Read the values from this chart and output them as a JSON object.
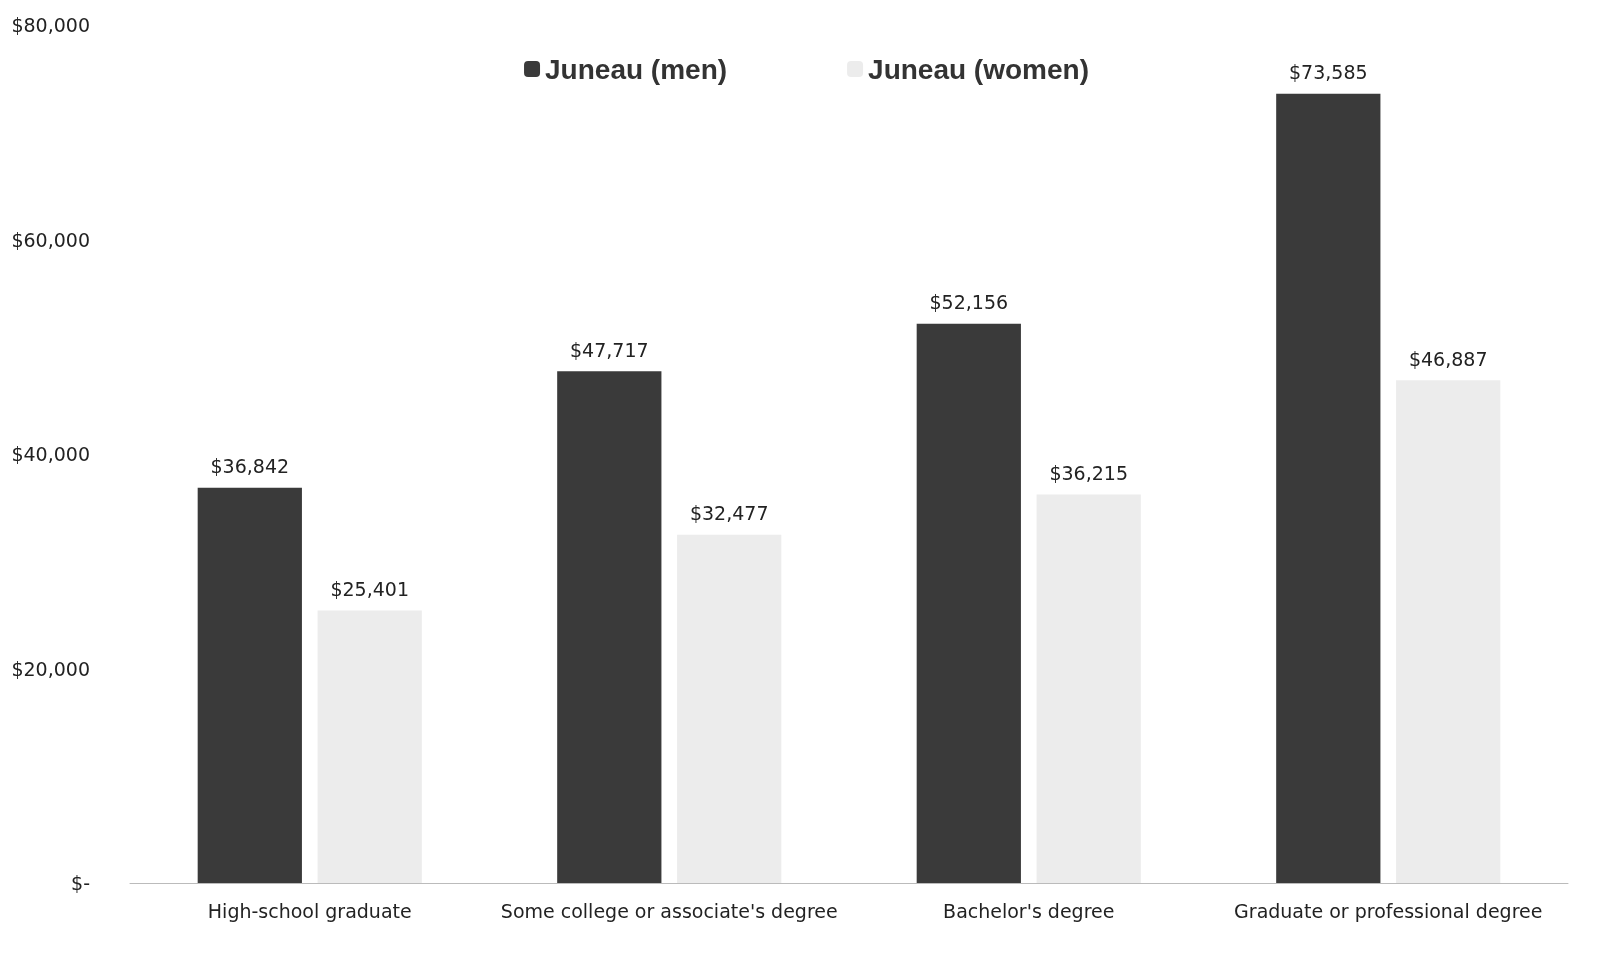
{
  "chart_data": {
    "type": "bar",
    "categories": [
      "High-school graduate",
      "Some college or associate's degree",
      "Bachelor's degree",
      "Graduate or professional degree"
    ],
    "series": [
      {
        "name": "Juneau (men)",
        "color": "#3a3a3a",
        "values": [
          36842,
          47717,
          52156,
          73585
        ],
        "value_labels": [
          "$36,842",
          "$47,717",
          "$52,156",
          "$73,585"
        ]
      },
      {
        "name": "Juneau (women)",
        "color": "#ececec",
        "values": [
          25401,
          32477,
          36215,
          46887
        ],
        "value_labels": [
          "$25,401",
          "$32,477",
          "$36,215",
          "$46,887"
        ]
      }
    ],
    "ylim": [
      0,
      80000
    ],
    "yticks": [
      {
        "value": 0,
        "label": "$-"
      },
      {
        "value": 20000,
        "label": "$20,000"
      },
      {
        "value": 40000,
        "label": "$40,000"
      },
      {
        "value": 60000,
        "label": "$60,000"
      },
      {
        "value": 80000,
        "label": "$80,000"
      }
    ],
    "legend": "top",
    "grid": false
  }
}
